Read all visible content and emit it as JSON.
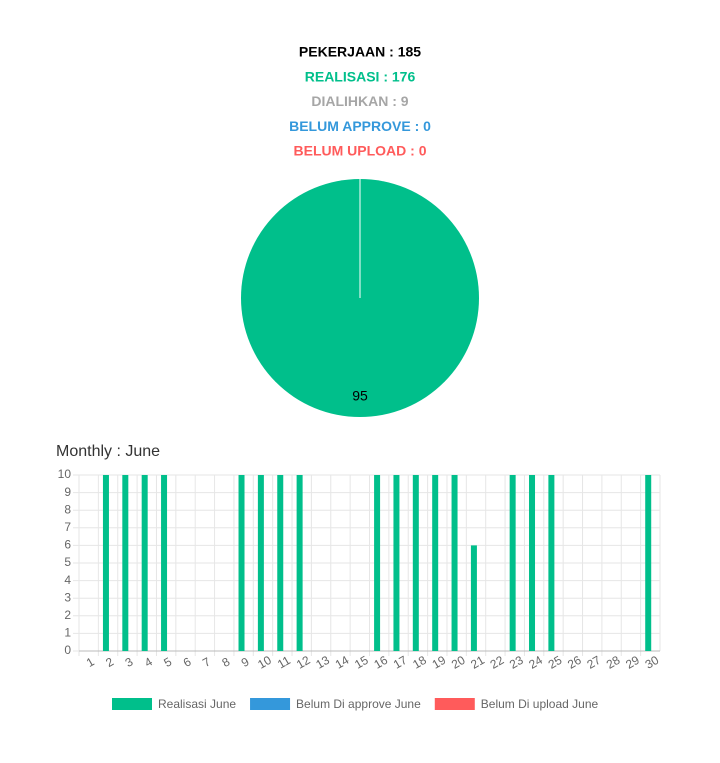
{
  "summary": [
    {
      "text": "PEKERJAAN : 185",
      "color": "#000000"
    },
    {
      "text": "REALISASI : 176",
      "color": "#00bf8b"
    },
    {
      "text": "DIALIHKAN : 9",
      "color": "#a6a6a6"
    },
    {
      "text": "BELUM APPROVE : 0",
      "color": "#3498db"
    },
    {
      "text": "BELUM UPLOAD : 0",
      "color": "#ff5b5b"
    }
  ],
  "chart_data": [
    {
      "type": "pie",
      "values": [
        95
      ],
      "colors": [
        "#00bf8b"
      ]
    },
    {
      "type": "bar",
      "title": "Monthly : June",
      "categories": [
        "1",
        "2",
        "3",
        "4",
        "5",
        "6",
        "7",
        "8",
        "9",
        "10",
        "11",
        "12",
        "13",
        "14",
        "15",
        "16",
        "17",
        "18",
        "19",
        "20",
        "21",
        "22",
        "23",
        "24",
        "25",
        "26",
        "27",
        "28",
        "29",
        "30"
      ],
      "series": [
        {
          "name": "Realisasi June",
          "color": "#00bf8b",
          "values": [
            0,
            10,
            10,
            10,
            10,
            0,
            0,
            0,
            10,
            10,
            10,
            10,
            0,
            0,
            0,
            10,
            10,
            10,
            10,
            10,
            6,
            0,
            10,
            10,
            10,
            0,
            0,
            0,
            0,
            10
          ]
        },
        {
          "name": "Belum Di approve June",
          "color": "#3498db",
          "values": [
            0,
            0,
            0,
            0,
            0,
            0,
            0,
            0,
            0,
            0,
            0,
            0,
            0,
            0,
            0,
            0,
            0,
            0,
            0,
            0,
            0,
            0,
            0,
            0,
            0,
            0,
            0,
            0,
            0,
            0
          ]
        },
        {
          "name": "Belum Di upload June",
          "color": "#ff5b5b",
          "values": [
            0,
            0,
            0,
            0,
            0,
            0,
            0,
            0,
            0,
            0,
            0,
            0,
            0,
            0,
            0,
            0,
            0,
            0,
            0,
            0,
            0,
            0,
            0,
            0,
            0,
            0,
            0,
            0,
            0,
            0
          ]
        }
      ],
      "ylim": [
        0,
        10
      ],
      "yticks": [
        0,
        1,
        2,
        3,
        4,
        5,
        6,
        7,
        8,
        9,
        10
      ],
      "grid": true
    }
  ]
}
